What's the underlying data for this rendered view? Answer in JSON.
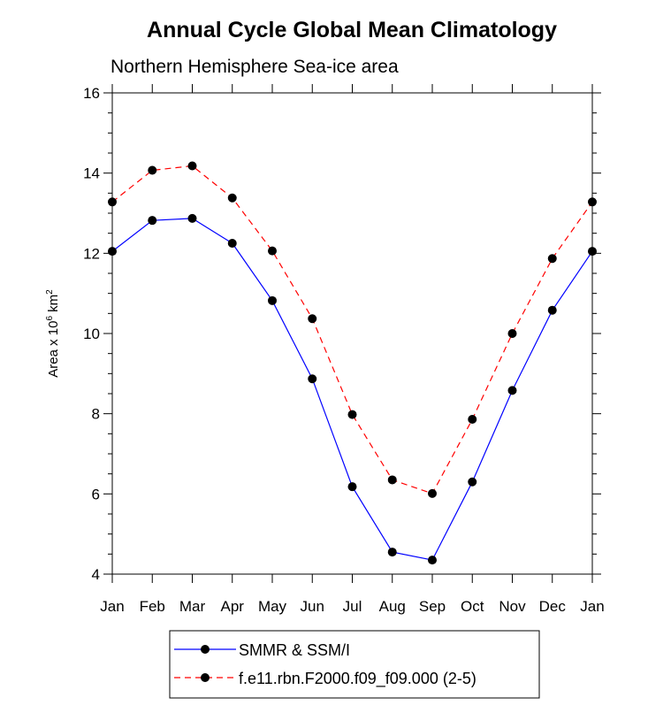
{
  "chart_data": {
    "type": "line",
    "title": "Annual Cycle Global Mean Climatology",
    "subtitle": "Northern Hemisphere Sea-ice area",
    "ylabel": {
      "prefix": "Area x 10",
      "exp1": "6",
      "mid": " km",
      "exp2": "2"
    },
    "xlabel": "",
    "categories": [
      "Jan",
      "Feb",
      "Mar",
      "Apr",
      "May",
      "Jun",
      "Jul",
      "Aug",
      "Sep",
      "Oct",
      "Nov",
      "Dec",
      "Jan"
    ],
    "ylim": [
      4,
      16
    ],
    "yticks": [
      4,
      6,
      8,
      10,
      12,
      14,
      16
    ],
    "series": [
      {
        "name": "SMMR & SSM/I",
        "color": "#0000ff",
        "dash": "solid",
        "values": [
          12.05,
          12.82,
          12.87,
          12.25,
          10.82,
          8.87,
          6.18,
          4.55,
          4.35,
          6.3,
          8.58,
          10.58,
          12.05
        ]
      },
      {
        "name": "f.e11.rbn.F2000.f09_f09.000 (2-5)",
        "color": "#ff0000",
        "dash": "dashed",
        "values": [
          13.28,
          14.07,
          14.18,
          13.38,
          12.06,
          10.37,
          7.98,
          6.35,
          6.01,
          7.86,
          10.0,
          11.87,
          13.28
        ]
      }
    ]
  }
}
